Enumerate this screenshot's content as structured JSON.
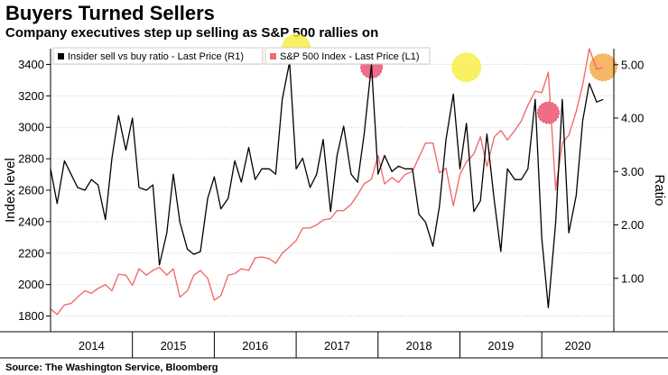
{
  "header": {
    "title": "Buyers Turned Sellers",
    "subtitle": "Company executives step up selling as S&P 500 rallies on"
  },
  "footer": {
    "source": "Source: The Washington Service, Bloomberg"
  },
  "colors": {
    "ratio_line": "#000000",
    "sp500_line": "#f26c6c",
    "highlight_yellow": "#f5ee3c",
    "highlight_red": "#e84a6a",
    "highlight_orange": "#f4a640",
    "gridline": "#cfcfcf"
  },
  "chart_data": {
    "type": "line",
    "title": "Buyers Turned Sellers",
    "subtitle": "Company executives step up selling as S&P 500 rallies on",
    "left_axis": {
      "label": "Index level",
      "ylim": [
        1700,
        3500
      ],
      "ticks": [
        1800,
        2000,
        2200,
        2400,
        2600,
        2800,
        3000,
        3200,
        3400
      ]
    },
    "right_axis": {
      "label": "Ratio",
      "ylim": [
        0,
        5.3
      ],
      "ticks": [
        "1.00",
        "2.00",
        "3.00",
        "4.00",
        "5.00"
      ]
    },
    "x_axis": {
      "range": [
        2014.0,
        2020.88
      ],
      "years": [
        "2014",
        "2015",
        "2016",
        "2017",
        "2018",
        "2019",
        "2020"
      ]
    },
    "legend": [
      {
        "label": "Insider sell vs buy ratio - Last Price (R1)",
        "series": "ratio"
      },
      {
        "label": "S&P 500 Index - Last Price (L1)",
        "series": "sp500"
      }
    ],
    "series": [
      {
        "name": "Insider sell vs buy ratio - Last Price (R1)",
        "axis": "right",
        "x": [
          2014.0,
          2014.08,
          2014.17,
          2014.25,
          2014.33,
          2014.42,
          2014.5,
          2014.58,
          2014.67,
          2014.75,
          2014.83,
          2014.92,
          2015.0,
          2015.08,
          2015.17,
          2015.25,
          2015.33,
          2015.42,
          2015.5,
          2015.58,
          2015.67,
          2015.75,
          2015.83,
          2015.92,
          2016.0,
          2016.08,
          2016.17,
          2016.25,
          2016.33,
          2016.42,
          2016.5,
          2016.58,
          2016.67,
          2016.75,
          2016.83,
          2016.92,
          2017.0,
          2017.08,
          2017.17,
          2017.25,
          2017.33,
          2017.42,
          2017.5,
          2017.58,
          2017.67,
          2017.75,
          2017.83,
          2017.92,
          2018.0,
          2018.08,
          2018.17,
          2018.25,
          2018.33,
          2018.42,
          2018.5,
          2018.58,
          2018.67,
          2018.75,
          2018.83,
          2018.92,
          2019.0,
          2019.08,
          2019.17,
          2019.25,
          2019.33,
          2019.42,
          2019.5,
          2019.58,
          2019.67,
          2019.75,
          2019.83,
          2019.92,
          2020.0,
          2020.08,
          2020.17,
          2020.25,
          2020.33,
          2020.42,
          2020.5,
          2020.58,
          2020.67,
          2020.75
        ],
        "values": [
          3.05,
          2.4,
          3.2,
          2.95,
          2.7,
          2.65,
          2.85,
          2.75,
          2.1,
          3.25,
          4.05,
          3.4,
          4.0,
          2.7,
          2.65,
          2.75,
          1.25,
          1.85,
          2.95,
          2.05,
          1.55,
          1.45,
          1.5,
          2.5,
          2.9,
          2.3,
          2.5,
          3.2,
          2.8,
          3.45,
          2.85,
          3.05,
          3.05,
          2.95,
          4.35,
          5.05,
          3.05,
          3.25,
          2.7,
          2.95,
          3.6,
          2.25,
          3.3,
          3.85,
          2.95,
          2.8,
          3.7,
          5.0,
          2.95,
          3.3,
          3.0,
          3.1,
          3.05,
          3.05,
          2.2,
          2.05,
          1.6,
          2.35,
          3.6,
          4.45,
          3.05,
          3.9,
          2.25,
          2.45,
          3.7,
          2.45,
          1.5,
          3.05,
          2.85,
          2.85,
          3.05,
          4.35,
          1.75,
          0.45,
          2.05,
          4.35,
          1.85,
          2.55,
          3.95,
          4.65,
          4.3,
          4.35
        ]
      },
      {
        "name": "S&P 500 Index - Last Price (L1)",
        "axis": "left",
        "x": [
          2014.0,
          2014.08,
          2014.17,
          2014.25,
          2014.33,
          2014.42,
          2014.5,
          2014.58,
          2014.67,
          2014.75,
          2014.83,
          2014.92,
          2015.0,
          2015.08,
          2015.17,
          2015.25,
          2015.33,
          2015.42,
          2015.5,
          2015.58,
          2015.67,
          2015.75,
          2015.83,
          2015.92,
          2016.0,
          2016.08,
          2016.17,
          2016.25,
          2016.33,
          2016.42,
          2016.5,
          2016.58,
          2016.67,
          2016.75,
          2016.83,
          2016.92,
          2017.0,
          2017.08,
          2017.17,
          2017.25,
          2017.33,
          2017.42,
          2017.5,
          2017.58,
          2017.67,
          2017.75,
          2017.83,
          2017.92,
          2018.0,
          2018.08,
          2018.17,
          2018.25,
          2018.33,
          2018.42,
          2018.5,
          2018.58,
          2018.67,
          2018.75,
          2018.83,
          2018.92,
          2019.0,
          2019.08,
          2019.17,
          2019.25,
          2019.33,
          2019.42,
          2019.5,
          2019.58,
          2019.67,
          2019.75,
          2019.83,
          2019.92,
          2020.0,
          2020.08,
          2020.17,
          2020.25,
          2020.33,
          2020.42,
          2020.5,
          2020.58,
          2020.67,
          2020.75
        ],
        "values": [
          1845,
          1810,
          1870,
          1880,
          1920,
          1960,
          1945,
          1975,
          2000,
          1960,
          2065,
          2060,
          1995,
          2100,
          2060,
          2090,
          2110,
          2060,
          2100,
          1920,
          1960,
          2060,
          2090,
          2040,
          1900,
          1930,
          2060,
          2070,
          2100,
          2090,
          2170,
          2175,
          2165,
          2135,
          2200,
          2240,
          2280,
          2360,
          2360,
          2380,
          2410,
          2420,
          2470,
          2470,
          2510,
          2570,
          2640,
          2670,
          2820,
          2640,
          2680,
          2650,
          2700,
          2720,
          2810,
          2900,
          2900,
          2710,
          2740,
          2500,
          2700,
          2780,
          2830,
          2940,
          2750,
          2940,
          2980,
          2920,
          2980,
          3040,
          3140,
          3230,
          3220,
          3350,
          2600,
          2900,
          2950,
          3100,
          3270,
          3500,
          3370,
          3380
        ]
      }
    ],
    "highlights": [
      {
        "x": 2017.0,
        "ratio": 5.3,
        "color": "yellow"
      },
      {
        "x": 2017.92,
        "ratio": 4.95,
        "color": "red"
      },
      {
        "x": 2019.08,
        "ratio": 4.95,
        "color": "yellow"
      },
      {
        "x": 2020.08,
        "ratio": 4.1,
        "color": "red"
      },
      {
        "x": 2020.75,
        "ratio": 4.95,
        "color": "orange"
      }
    ]
  }
}
